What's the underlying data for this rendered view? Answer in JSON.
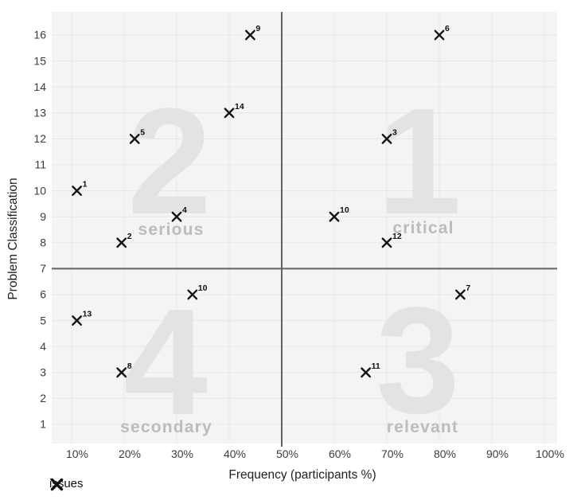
{
  "chart_data": {
    "type": "scatter",
    "title": "",
    "xlabel": "Frequency (participants %)",
    "ylabel": "Problem Classification",
    "x_ticks": {
      "values": [
        10,
        20,
        30,
        40,
        50,
        60,
        70,
        80,
        90,
        100
      ],
      "labels": [
        "10%",
        "20%",
        "30%",
        "40%",
        "50%",
        "60%",
        "70%",
        "80%",
        "90%",
        "100%"
      ]
    },
    "y_ticks": {
      "values": [
        1,
        2,
        3,
        4,
        5,
        6,
        7,
        8,
        9,
        10,
        11,
        12,
        13,
        14,
        15,
        16
      ],
      "labels": [
        "1",
        "2",
        "3",
        "4",
        "5",
        "6",
        "7",
        "8",
        "9",
        "10",
        "11",
        "12",
        "13",
        "14",
        "15",
        "16"
      ]
    },
    "xlim": [
      6.2,
      102.4
    ],
    "ylim": [
      0.26,
      16.9
    ],
    "grid": true,
    "dividers": {
      "x": 50,
      "y": 7
    },
    "quadrants": [
      {
        "id": "q1",
        "number": "1",
        "word": "critical",
        "position": "top-right"
      },
      {
        "id": "q2",
        "number": "2",
        "word": "serious",
        "position": "top-left"
      },
      {
        "id": "q3",
        "number": "3",
        "word": "relevant",
        "position": "bottom-right"
      },
      {
        "id": "q4",
        "number": "4",
        "word": "secondary",
        "position": "bottom-left"
      }
    ],
    "series": [
      {
        "name": "issues",
        "marker": "x",
        "points": [
          {
            "label": "1",
            "x": 11,
            "y": 10
          },
          {
            "label": "2",
            "x": 19.5,
            "y": 8
          },
          {
            "label": "3",
            "x": 70,
            "y": 12
          },
          {
            "label": "4",
            "x": 30,
            "y": 9
          },
          {
            "label": "5",
            "x": 22,
            "y": 12
          },
          {
            "label": "6",
            "x": 80,
            "y": 16
          },
          {
            "label": "7",
            "x": 84,
            "y": 6
          },
          {
            "label": "8",
            "x": 19.5,
            "y": 3
          },
          {
            "label": "9",
            "x": 44,
            "y": 16
          },
          {
            "label": "10",
            "x": 60,
            "y": 9
          },
          {
            "label": "10",
            "x": 33,
            "y": 6
          },
          {
            "label": "11",
            "x": 66,
            "y": 3
          },
          {
            "label": "12",
            "x": 70,
            "y": 8
          },
          {
            "label": "13",
            "x": 11,
            "y": 5
          },
          {
            "label": "14",
            "x": 40,
            "y": 13
          }
        ]
      }
    ],
    "legend": {
      "position": "bottom-left",
      "marker": "x",
      "label": "issues"
    }
  },
  "colors": {
    "plot_bg": "#f4f4f4",
    "grid": "#e7e7e7",
    "divider": "#5f6368",
    "marker": "#141414",
    "point_label": "#111111",
    "watermark_number": "#e3e3e3",
    "watermark_word": "#bcbcbc",
    "tick_text": "#3c3c3c",
    "axis_title": "#202020"
  }
}
